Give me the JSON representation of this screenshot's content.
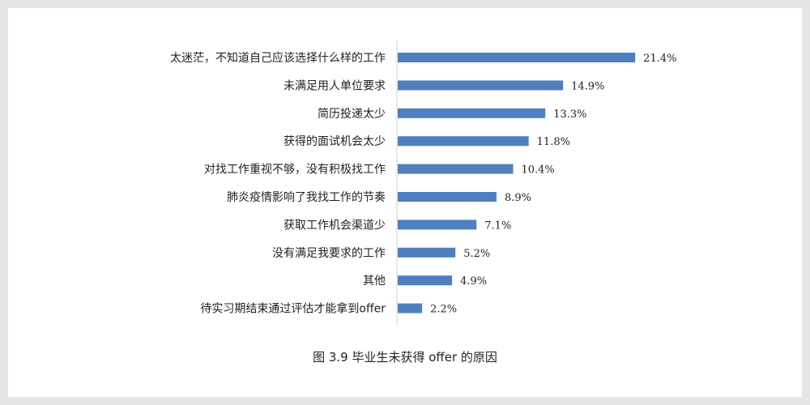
{
  "caption": "图 3.9  毕业生未获得 offer 的原因",
  "chart_data": {
    "type": "bar",
    "orientation": "horizontal",
    "categories": [
      "太迷茫，不知道自己应该选择什么样的工作",
      "未满足用人单位要求",
      "简历投递太少",
      "获得的面试机会太少",
      "对找工作重视不够，没有积极找工作",
      "肺炎疫情影响了我找工作的节奏",
      "获取工作机会渠道少",
      "没有满足我要求的工作",
      "其他",
      "待实习期结束通过评估才能拿到offer"
    ],
    "values": [
      21.4,
      14.9,
      13.3,
      11.8,
      10.4,
      8.9,
      7.1,
      5.2,
      4.9,
      2.2
    ],
    "value_labels": [
      "21.4%",
      "14.9%",
      "13.3%",
      "11.8%",
      "10.4%",
      "8.9%",
      "7.1%",
      "5.2%",
      "4.9%",
      "2.2%"
    ],
    "bar_color": "#4f7fbf",
    "axis_color": "#d0d0d0",
    "grid": false,
    "legend": "none"
  }
}
